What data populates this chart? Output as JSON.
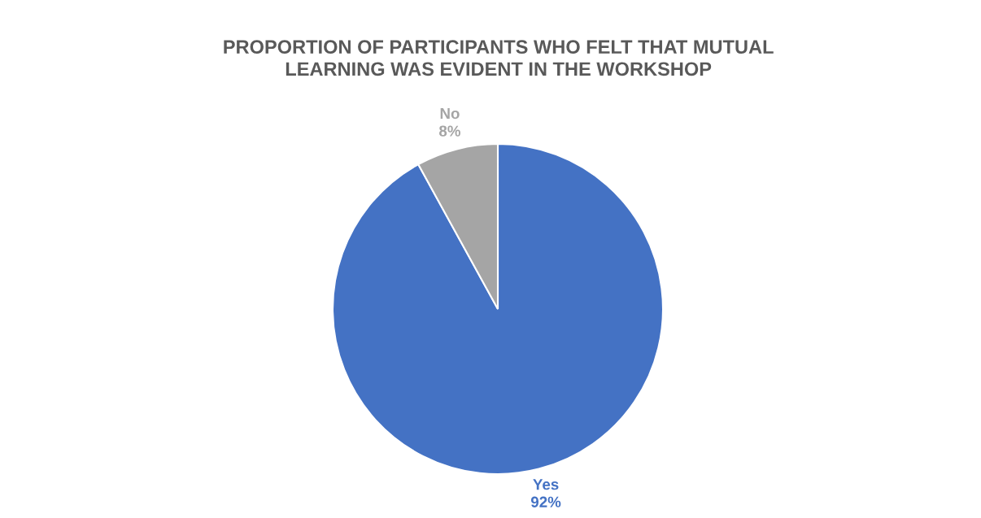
{
  "chart_data": {
    "type": "pie",
    "title": "PROPORTION OF PARTICIPANTS WHO FELT THAT MUTUAL LEARNING WAS EVIDENT IN THE WORKSHOP",
    "categories": [
      "Yes",
      "No"
    ],
    "values": [
      92,
      8
    ],
    "colors": [
      "#4472c4",
      "#a5a5a5"
    ],
    "value_labels": [
      "92%",
      "8%"
    ]
  }
}
